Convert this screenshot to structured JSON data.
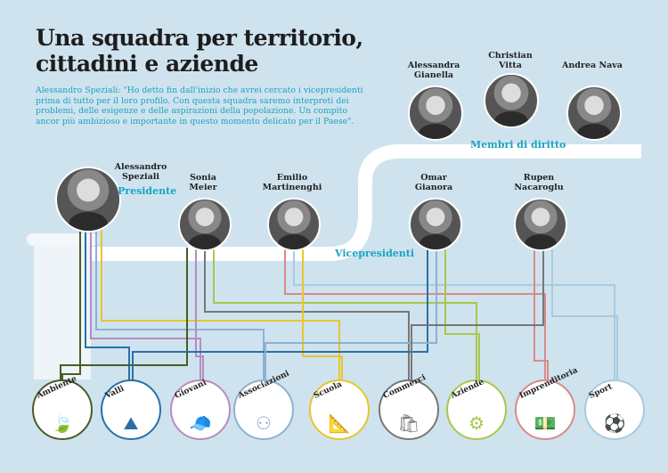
{
  "title_line1": "Una squadra per territorio,",
  "title_line2": "cittadini e aziende",
  "quote": "Alessandro Speziali: \"Ho detto fin dall'inizio che avrei cercato i vicepresidenti prima di tutto per il loro profilo. Con questa squadra saremo interpreti dei problemi, delle esigenze e delle aspirazioni della popolazione. Un compito ancor più ambizioso e importante in questo momento delicato per il Paese\".",
  "people": [
    {
      "name": "Alessandro Speziali",
      "role": "Presidente"
    },
    {
      "name": "Sonia Meier"
    },
    {
      "name": "Emilio Martinenghi"
    },
    {
      "name": "Omar Gianora"
    },
    {
      "name": "Rupen Nacaroglu"
    },
    {
      "name": "Alessandra Gianella"
    },
    {
      "name": "Christian Vitta"
    },
    {
      "name": "Andrea Nava"
    }
  ],
  "groups": {
    "vice": "Vicepresidenti",
    "diritto": "Membri di diritto"
  },
  "categories": [
    {
      "label": "Ambiente",
      "icon": "leaf",
      "color": "#4b5b26"
    },
    {
      "label": "Valli",
      "icon": "mountains",
      "color": "#2a6fa8"
    },
    {
      "label": "Giovani",
      "icon": "cap",
      "color": "#b48cc2"
    },
    {
      "label": "Associazioni",
      "icon": "people-circle",
      "color": "#8fb0d4"
    },
    {
      "label": "Scuola",
      "icon": "compass-ruler",
      "color": "#e6c62c"
    },
    {
      "label": "Commerci",
      "icon": "shopping-bag",
      "color": "#777777"
    },
    {
      "label": "Aziende",
      "icon": "gear",
      "color": "#a8c84a"
    },
    {
      "label": "Imprenditoria",
      "icon": "money",
      "color": "#d98a8a"
    },
    {
      "label": "Sport",
      "icon": "football",
      "color": "#a6cbe0"
    }
  ]
}
